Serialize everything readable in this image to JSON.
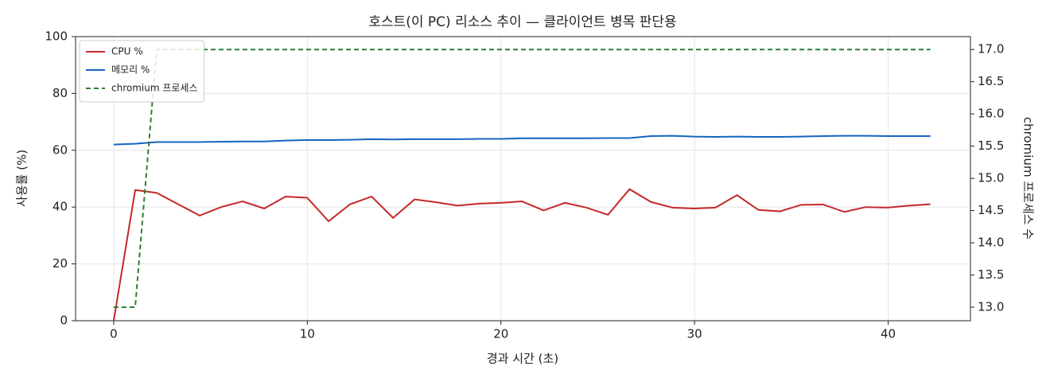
{
  "chart_data": {
    "type": "line",
    "title": "호스트(이 PC) 리소스 추이 — 클라이언트 병목 판단용",
    "x_label": "경과 시간 (초)",
    "y_label": "사용률 (%)",
    "y2_label": "chromium 프로세스 수",
    "x": [
      0,
      1.11,
      2.22,
      3.33,
      4.44,
      5.55,
      6.66,
      7.77,
      8.88,
      9.99,
      11.1,
      12.21,
      13.32,
      14.43,
      15.54,
      16.65,
      17.76,
      18.87,
      19.98,
      21.09,
      22.2,
      23.31,
      24.42,
      25.53,
      26.64,
      27.75,
      28.86,
      29.97,
      31.08,
      32.19,
      33.3,
      34.41,
      35.52,
      36.63,
      37.74,
      38.85,
      39.96,
      41.07,
      42.18
    ],
    "series": [
      {
        "name": "CPU %",
        "color": "#c62828",
        "dashed": false,
        "values": [
          0,
          46,
          45,
          41,
          37,
          40,
          42,
          39.5,
          43.7,
          43.3,
          35,
          41,
          43.7,
          36.2,
          42.7,
          41.7,
          40.5,
          41.2,
          41.5,
          42,
          38.8,
          41.5,
          39.8,
          37.3,
          46.3,
          41.8,
          39.8,
          39.5,
          39.8,
          44.2,
          39,
          38.5,
          40.8,
          40.9,
          38.3,
          40,
          39.8,
          40.5,
          41
        ]
      },
      {
        "name": "메모리 %",
        "color": "#1565c0",
        "dashed": false,
        "values": [
          62,
          62.3,
          62.9,
          62.9,
          62.9,
          63,
          63.1,
          63.1,
          63.4,
          63.6,
          63.6,
          63.7,
          63.9,
          63.8,
          63.9,
          63.9,
          63.9,
          64,
          64,
          64.2,
          64.2,
          64.2,
          64.2,
          64.3,
          64.3,
          65,
          65.1,
          64.8,
          64.7,
          64.8,
          64.7,
          64.7,
          64.8,
          65,
          65.1,
          65.1,
          65,
          65,
          65
        ]
      },
      {
        "name": "chromium 프로세스",
        "color": "#2e7d32",
        "dashed": true,
        "axis": "y2",
        "values": [
          13,
          13,
          17,
          17,
          17,
          17,
          17,
          17,
          17,
          17,
          17,
          17,
          17,
          17,
          17,
          17,
          17,
          17,
          17,
          17,
          17,
          17,
          17,
          17,
          17,
          17,
          17,
          17,
          17,
          17,
          17,
          17,
          17,
          17,
          17,
          17,
          17,
          17,
          17
        ]
      }
    ],
    "xlim": [
      -1.97,
      44.25
    ],
    "xticks": [
      0,
      10,
      20,
      30,
      40
    ],
    "ylim": [
      0,
      100
    ],
    "yticks": [
      0,
      20,
      40,
      60,
      80,
      100
    ],
    "y2lim": [
      12.79,
      17.2
    ],
    "y2ticks": [
      {
        "value": 13,
        "label": "13.0"
      },
      13.5,
      {
        "value": 14,
        "label": "14.0"
      },
      14.5,
      {
        "value": 15,
        "label": "15.0"
      },
      15.5,
      {
        "value": 16,
        "label": "16.0"
      },
      16.5,
      {
        "value": 17,
        "label": "17.0"
      }
    ],
    "grid": true,
    "legend": "upper-left"
  }
}
